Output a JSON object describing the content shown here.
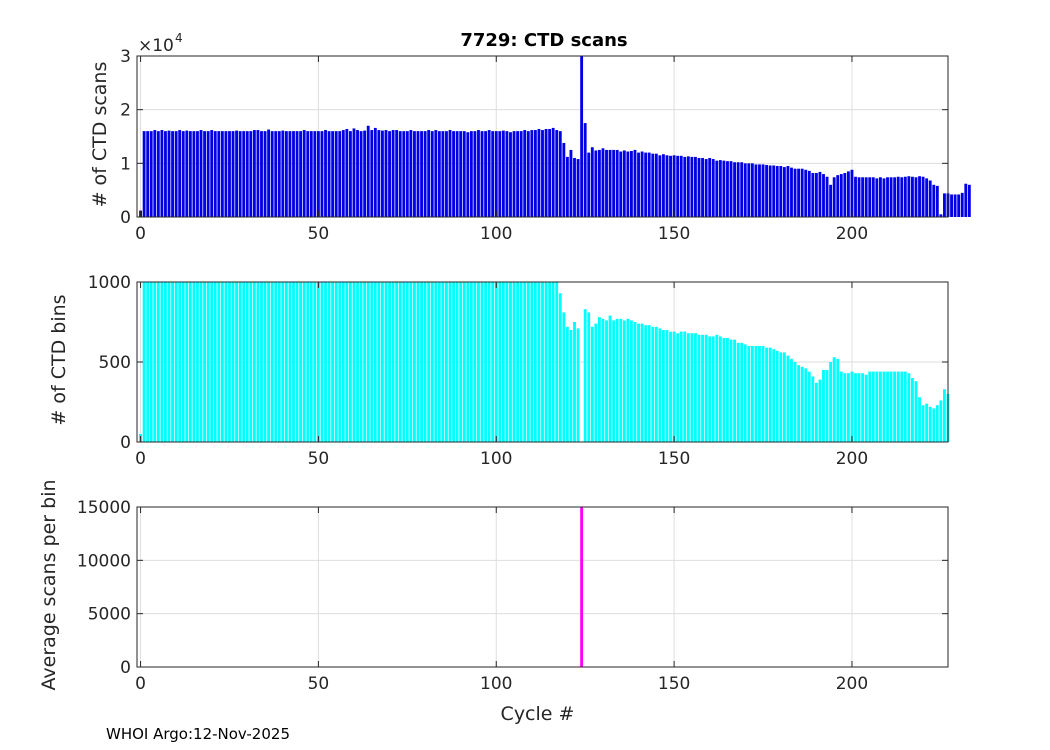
{
  "figure": {
    "title": "7729: CTD scans",
    "footer": "WHOI Argo:12-Nov-2025"
  },
  "chart_data": [
    {
      "type": "bar",
      "ylabel": "# of CTD scans",
      "xlabel": "",
      "exponent_label": "×10",
      "exponent": "4",
      "xlim": [
        -1,
        227
      ],
      "ylim": [
        0,
        3
      ],
      "xticks": [
        "0",
        "50",
        "100",
        "150",
        "200"
      ],
      "yticks": [
        "0",
        "1",
        "2",
        "3"
      ],
      "grid": true,
      "color": "#0000e6",
      "x_start": 0,
      "values": [
        0.12,
        1.6,
        1.6,
        1.6,
        1.62,
        1.6,
        1.62,
        1.6,
        1.61,
        1.6,
        1.6,
        1.62,
        1.6,
        1.61,
        1.6,
        1.6,
        1.6,
        1.62,
        1.6,
        1.6,
        1.62,
        1.6,
        1.6,
        1.6,
        1.6,
        1.6,
        1.6,
        1.61,
        1.6,
        1.6,
        1.6,
        1.6,
        1.62,
        1.62,
        1.6,
        1.6,
        1.63,
        1.6,
        1.6,
        1.6,
        1.61,
        1.6,
        1.6,
        1.6,
        1.6,
        1.6,
        1.62,
        1.6,
        1.6,
        1.6,
        1.6,
        1.6,
        1.62,
        1.6,
        1.6,
        1.6,
        1.6,
        1.62,
        1.64,
        1.6,
        1.65,
        1.62,
        1.6,
        1.61,
        1.7,
        1.62,
        1.66,
        1.62,
        1.61,
        1.62,
        1.6,
        1.62,
        1.62,
        1.6,
        1.6,
        1.6,
        1.62,
        1.6,
        1.6,
        1.6,
        1.6,
        1.62,
        1.6,
        1.62,
        1.6,
        1.6,
        1.6,
        1.62,
        1.6,
        1.6,
        1.6,
        1.6,
        1.58,
        1.6,
        1.6,
        1.62,
        1.6,
        1.6,
        1.62,
        1.6,
        1.6,
        1.6,
        1.61,
        1.6,
        1.58,
        1.6,
        1.6,
        1.6,
        1.62,
        1.6,
        1.62,
        1.62,
        1.64,
        1.62,
        1.64,
        1.64,
        1.66,
        1.62,
        1.6,
        1.38,
        1.12,
        1.25,
        1.1,
        1.08,
        3.0,
        1.75,
        1.2,
        1.3,
        1.24,
        1.25,
        1.28,
        1.25,
        1.25,
        1.25,
        1.25,
        1.22,
        1.24,
        1.22,
        1.23,
        1.25,
        1.2,
        1.22,
        1.2,
        1.2,
        1.18,
        1.18,
        1.15,
        1.17,
        1.15,
        1.14,
        1.15,
        1.14,
        1.14,
        1.12,
        1.13,
        1.12,
        1.12,
        1.1,
        1.1,
        1.08,
        1.1,
        1.08,
        1.05,
        1.06,
        1.05,
        1.04,
        1.04,
        1.02,
        1.02,
        1.02,
        1.0,
        1.0,
        1.0,
        0.98,
        0.98,
        0.98,
        0.97,
        0.96,
        0.96,
        0.95,
        0.95,
        0.93,
        0.95,
        0.92,
        0.9,
        0.9,
        0.9,
        0.88,
        0.86,
        0.82,
        0.82,
        0.84,
        0.8,
        0.75,
        0.6,
        0.74,
        0.78,
        0.8,
        0.82,
        0.85,
        0.88,
        0.75,
        0.74,
        0.74,
        0.74,
        0.74,
        0.74,
        0.72,
        0.74,
        0.72,
        0.74,
        0.74,
        0.74,
        0.75,
        0.74,
        0.75,
        0.76,
        0.75,
        0.74,
        0.76,
        0.75,
        0.72,
        0.68,
        0.6,
        0.58,
        0.05,
        0.44,
        0.44,
        0.42,
        0.42,
        0.42,
        0.45,
        0.62,
        0.6
      ]
    },
    {
      "type": "bar",
      "ylabel": "# of CTD bins",
      "xlabel": "",
      "xlim": [
        -1,
        227
      ],
      "ylim": [
        0,
        1000
      ],
      "xticks": [
        "0",
        "50",
        "100",
        "150",
        "200"
      ],
      "yticks": [
        "0",
        "500",
        "1000"
      ],
      "grid": true,
      "color": "#00ffff",
      "x_start": 0,
      "values": [
        50,
        1000,
        1000,
        1000,
        1000,
        1000,
        1000,
        1000,
        1000,
        1000,
        1000,
        1000,
        1000,
        1000,
        1000,
        1000,
        1000,
        1000,
        1000,
        1000,
        1000,
        1000,
        1000,
        1000,
        1000,
        1000,
        1000,
        1000,
        1000,
        1000,
        1000,
        1000,
        1000,
        1000,
        1000,
        1000,
        1000,
        1000,
        1000,
        1000,
        1000,
        1000,
        1000,
        1000,
        1000,
        1000,
        1000,
        1000,
        1000,
        1000,
        1000,
        1000,
        1000,
        1000,
        1000,
        1000,
        1000,
        1000,
        1000,
        1000,
        1000,
        1000,
        1000,
        1000,
        1000,
        1000,
        1000,
        1000,
        1000,
        1000,
        1000,
        1000,
        1000,
        1000,
        1000,
        1000,
        1000,
        1000,
        1000,
        1000,
        1000,
        1000,
        1000,
        1000,
        1000,
        1000,
        1000,
        1000,
        1000,
        1000,
        1000,
        1000,
        1000,
        1000,
        1000,
        1000,
        1000,
        1000,
        1000,
        1000,
        1000,
        1000,
        1000,
        1000,
        1000,
        1000,
        1000,
        1000,
        1000,
        1000,
        1000,
        1000,
        1000,
        1000,
        1000,
        1000,
        1000,
        1000,
        930,
        810,
        720,
        700,
        750,
        710,
        0,
        830,
        810,
        720,
        740,
        780,
        770,
        760,
        790,
        760,
        770,
        770,
        760,
        770,
        760,
        750,
        740,
        740,
        730,
        730,
        720,
        720,
        710,
        700,
        700,
        690,
        690,
        680,
        690,
        690,
        680,
        680,
        680,
        670,
        670,
        670,
        660,
        660,
        670,
        660,
        650,
        650,
        640,
        640,
        620,
        620,
        610,
        600,
        600,
        600,
        600,
        600,
        590,
        590,
        580,
        570,
        560,
        560,
        540,
        520,
        500,
        480,
        470,
        460,
        440,
        410,
        370,
        390,
        450,
        450,
        500,
        530,
        520,
        440,
        430,
        430,
        440,
        430,
        430,
        430,
        420,
        440,
        440,
        440,
        440,
        440,
        440,
        440,
        440,
        440,
        440,
        440,
        430,
        400,
        380,
        280,
        230,
        240,
        220,
        210,
        230,
        260,
        330,
        300
      ]
    },
    {
      "type": "bar",
      "ylabel": "Average scans per bin",
      "xlabel": "Cycle #",
      "xlim": [
        -1,
        227
      ],
      "ylim": [
        0,
        15000
      ],
      "xticks": [
        "0",
        "50",
        "100",
        "150",
        "200"
      ],
      "yticks": [
        "0",
        "5000",
        "10000",
        "15000"
      ],
      "grid": true,
      "color": "#ff00ff",
      "x": [
        124
      ],
      "values": [
        15000
      ]
    }
  ]
}
